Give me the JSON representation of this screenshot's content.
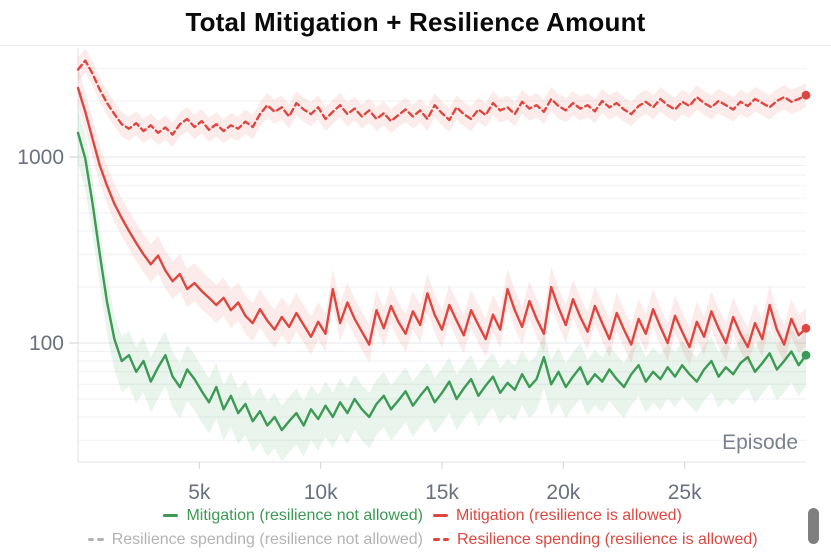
{
  "chart_data": {
    "type": "line",
    "title": "Total Mitigation + Resilience Amount",
    "xlabel": "Episode",
    "ylabel": "",
    "legend_position": "bottom",
    "grid": "horizontal major+minor (log), no vertical gridlines",
    "x_axis": {
      "range": [
        0,
        30000
      ],
      "ticks": [
        5000,
        10000,
        15000,
        20000,
        25000
      ],
      "tick_labels": [
        "5k",
        "10k",
        "15k",
        "20k",
        "25k"
      ]
    },
    "y_axis": {
      "scale": "log",
      "range": [
        23,
        3500
      ],
      "ticks": [
        1000,
        100
      ],
      "tick_labels": [
        "1000",
        "100"
      ]
    },
    "text_colors": {
      "title": "#0a0a0a",
      "axis_ticks": "#6a7080",
      "axis_title": "#7b8090"
    },
    "x_start": 0,
    "x_step": 300,
    "series": [
      {
        "name": "Mitigation (resilience not allowed)",
        "color": "#3b9a53",
        "dash": "solid",
        "end_dot": true,
        "band": [
          0.68,
          1.35
        ],
        "values": [
          1350,
          980,
          560,
          300,
          165,
          105,
          80,
          86,
          70,
          80,
          62,
          74,
          86,
          66,
          58,
          72,
          64,
          55,
          48,
          58,
          44,
          52,
          42,
          47,
          38,
          43,
          36,
          40,
          34,
          38,
          42,
          36,
          44,
          39,
          46,
          40,
          48,
          42,
          50,
          44,
          40,
          47,
          52,
          44,
          49,
          55,
          46,
          52,
          58,
          48,
          54,
          62,
          50,
          57,
          64,
          52,
          59,
          66,
          54,
          61,
          56,
          68,
          58,
          64,
          84,
          60,
          70,
          58,
          66,
          74,
          60,
          68,
          62,
          72,
          64,
          58,
          68,
          76,
          62,
          70,
          64,
          74,
          66,
          76,
          68,
          62,
          72,
          80,
          66,
          74,
          68,
          78,
          84,
          70,
          78,
          88,
          72,
          80,
          90,
          76,
          86
        ]
      },
      {
        "name": "Mitigation (resilience is allowed)",
        "color": "#dd473f",
        "dash": "solid",
        "end_dot": true,
        "band": [
          0.8,
          1.28
        ],
        "values": [
          2350,
          1750,
          1250,
          900,
          700,
          560,
          470,
          400,
          345,
          300,
          265,
          295,
          245,
          215,
          235,
          195,
          210,
          190,
          175,
          160,
          175,
          150,
          165,
          140,
          128,
          152,
          132,
          118,
          138,
          122,
          145,
          125,
          108,
          130,
          112,
          195,
          128,
          165,
          135,
          115,
          98,
          150,
          120,
          158,
          130,
          112,
          148,
          125,
          185,
          142,
          118,
          160,
          132,
          110,
          150,
          125,
          105,
          142,
          118,
          195,
          150,
          122,
          168,
          135,
          112,
          200,
          155,
          125,
          172,
          138,
          115,
          158,
          128,
          105,
          145,
          118,
          98,
          135,
          112,
          152,
          122,
          100,
          140,
          115,
          95,
          130,
          108,
          148,
          120,
          100,
          138,
          112,
          95,
          128,
          105,
          160,
          118,
          98,
          135,
          110,
          120
        ]
      },
      {
        "name": "Resilience spending (resilience not allowed)",
        "color": "#b3b3b3",
        "dash": "dashed",
        "end_dot": false,
        "band": null,
        "values": []
      },
      {
        "name": "Resilience spending (resilience is allowed)",
        "color": "#dd473f",
        "dash": "dashed",
        "end_dot": true,
        "band": [
          0.86,
          1.16
        ],
        "values": [
          2950,
          3300,
          2800,
          2300,
          1950,
          1700,
          1500,
          1420,
          1520,
          1380,
          1480,
          1350,
          1440,
          1320,
          1500,
          1600,
          1450,
          1560,
          1400,
          1500,
          1380,
          1480,
          1420,
          1550,
          1450,
          1700,
          1900,
          1750,
          1850,
          1650,
          1950,
          1800,
          1700,
          1850,
          1600,
          1750,
          1900,
          1700,
          1820,
          1650,
          1780,
          1600,
          1720,
          1560,
          1680,
          1800,
          1650,
          1780,
          1600,
          1900,
          1720,
          1580,
          1850,
          1700,
          1600,
          1800,
          1680,
          1950,
          1780,
          1850,
          1700,
          1980,
          1820,
          1900,
          1750,
          2050,
          1880,
          1780,
          1950,
          1820,
          1900,
          1760,
          2000,
          1850,
          1950,
          1800,
          1700,
          1880,
          1980,
          1850,
          2050,
          1900,
          1800,
          1980,
          1880,
          2100,
          1950,
          1850,
          2000,
          1900,
          1800,
          1980,
          1880,
          2050,
          1950,
          1850,
          2000,
          2100,
          1980,
          2050,
          2150
        ]
      }
    ]
  }
}
